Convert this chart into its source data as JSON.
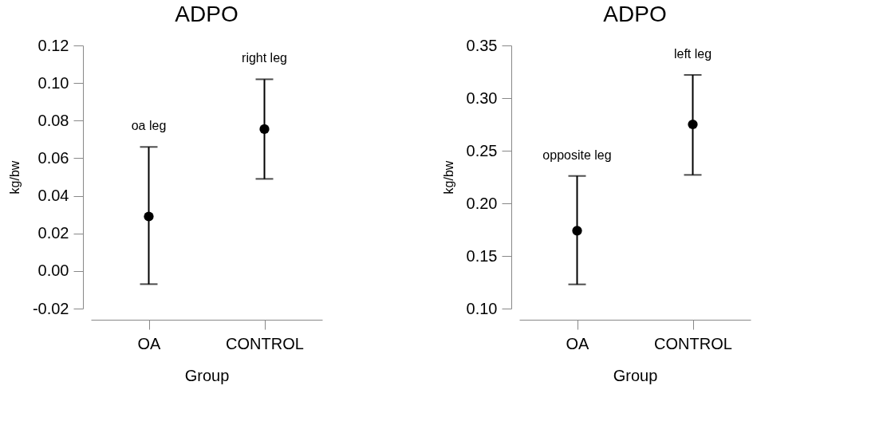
{
  "chart_data": [
    {
      "type": "scatter",
      "title": "ADPO",
      "xlabel": "Group",
      "ylabel": "kg/bw",
      "categories": [
        "OA",
        "CONTROL"
      ],
      "values": [
        0.029,
        0.0755
      ],
      "errors": [
        [
          -0.007,
          0.066
        ],
        [
          0.049,
          0.102
        ]
      ],
      "color": "#000000",
      "marker": "circle",
      "ylim": [
        -0.02,
        0.12
      ],
      "yticks": [
        {
          "value": -0.02,
          "label": "-0.02"
        },
        {
          "value": 0,
          "label": "0.00"
        },
        0.02,
        0.04,
        0.06,
        0.08,
        {
          "value": 0.1,
          "label": "0.10"
        },
        0.12
      ],
      "annotations": [
        "oa leg",
        "right leg"
      ]
    },
    {
      "type": "scatter",
      "title": "ADPO",
      "xlabel": "Group",
      "ylabel": "kg/bw",
      "categories": [
        "OA",
        "CONTROL"
      ],
      "values": [
        0.174,
        0.275
      ],
      "errors": [
        [
          0.123,
          0.226
        ],
        [
          0.227,
          0.322
        ]
      ],
      "color": "#000000",
      "marker": "circle",
      "ylim": [
        0.1,
        0.35
      ],
      "yticks": [
        {
          "value": 0.1,
          "label": "0.10"
        },
        0.15,
        {
          "value": 0.2,
          "label": "0.20"
        },
        0.25,
        {
          "value": 0.3,
          "label": "0.30"
        },
        0.35
      ],
      "annotations": [
        "opposite leg",
        "left leg"
      ]
    }
  ]
}
